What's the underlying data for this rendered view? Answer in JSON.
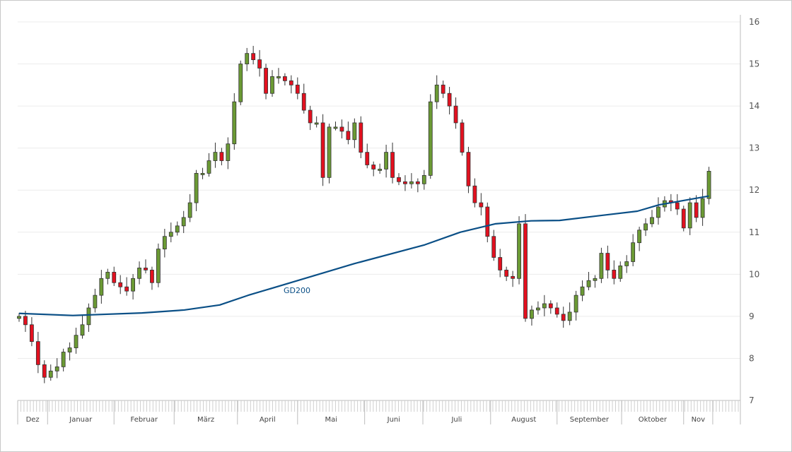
{
  "chart_data": {
    "type": "candlestick",
    "title": "",
    "ylim": [
      7,
      16
    ],
    "yticks": [
      "7",
      "8",
      "9",
      "10",
      "11",
      "12",
      "13",
      "14",
      "15",
      "16"
    ],
    "grid": true,
    "colors": {
      "up": "#6b9a34",
      "down": "#e3101f",
      "wick": "#333333",
      "gd200": "#0a4f86",
      "grid": "#ececec",
      "axis": "#bdbdbd"
    },
    "months": [
      {
        "label": "Dez",
        "start": 0,
        "end": 4.5
      },
      {
        "label": "Januar",
        "start": 4.5,
        "end": 15
      },
      {
        "label": "Februar",
        "start": 15,
        "end": 24.5
      },
      {
        "label": "März",
        "start": 24.5,
        "end": 34.5
      },
      {
        "label": "April",
        "start": 34.5,
        "end": 44
      },
      {
        "label": "Mai",
        "start": 44,
        "end": 54.6
      },
      {
        "label": "Juni",
        "start": 54.6,
        "end": 63.8
      },
      {
        "label": "Juli",
        "start": 63.8,
        "end": 74.5
      },
      {
        "label": "August",
        "start": 74.5,
        "end": 85
      },
      {
        "label": "September",
        "start": 85,
        "end": 95.2
      },
      {
        "label": "Oktober",
        "start": 95.2,
        "end": 105
      },
      {
        "label": "Nov",
        "start": 105,
        "end": 109.6
      }
    ],
    "close": [
      9.0,
      8.8,
      8.4,
      7.85,
      7.55,
      7.7,
      7.8,
      8.15,
      8.25,
      8.55,
      8.8,
      9.2,
      9.5,
      9.9,
      10.05,
      9.8,
      9.7,
      9.6,
      9.9,
      10.15,
      10.1,
      9.8,
      10.6,
      10.9,
      11.0,
      11.15,
      11.35,
      11.7,
      12.4,
      12.4,
      12.7,
      12.9,
      12.7,
      13.1,
      14.1,
      15.0,
      15.25,
      15.1,
      14.9,
      14.3,
      14.7,
      14.7,
      14.6,
      14.5,
      14.3,
      13.9,
      13.6,
      13.6,
      12.3,
      13.5,
      13.5,
      13.4,
      13.2,
      13.6,
      12.9,
      12.6,
      12.5,
      12.5,
      12.9,
      12.3,
      12.2,
      12.15,
      12.2,
      12.15,
      12.35,
      14.1,
      14.5,
      14.3,
      14.0,
      13.6,
      12.9,
      12.1,
      11.7,
      11.6,
      10.9,
      10.4,
      10.1,
      9.95,
      9.9,
      11.2,
      8.95,
      9.15,
      9.2,
      9.3,
      9.2,
      9.05,
      8.9,
      9.1,
      9.5,
      9.7,
      9.85,
      9.9,
      10.5,
      10.1,
      9.9,
      10.2,
      10.3,
      10.75,
      11.05,
      11.2,
      11.35,
      11.6,
      11.75,
      11.7,
      11.55,
      11.1,
      11.7,
      11.35,
      11.8,
      12.45
    ],
    "first_open": 8.95,
    "gd200": {
      "label": "GD200",
      "index": [
        0,
        8.5,
        19.4,
        26.1,
        31.7,
        36.2,
        41.8,
        52.9,
        64.1,
        69.7,
        75.3,
        80.9,
        85.4,
        92.1,
        97.7,
        101.1,
        109
      ],
      "values": [
        9.07,
        9.02,
        9.08,
        9.15,
        9.27,
        9.5,
        9.75,
        10.25,
        10.7,
        11.0,
        11.2,
        11.27,
        11.28,
        11.4,
        11.5,
        11.65,
        11.86
      ]
    }
  }
}
